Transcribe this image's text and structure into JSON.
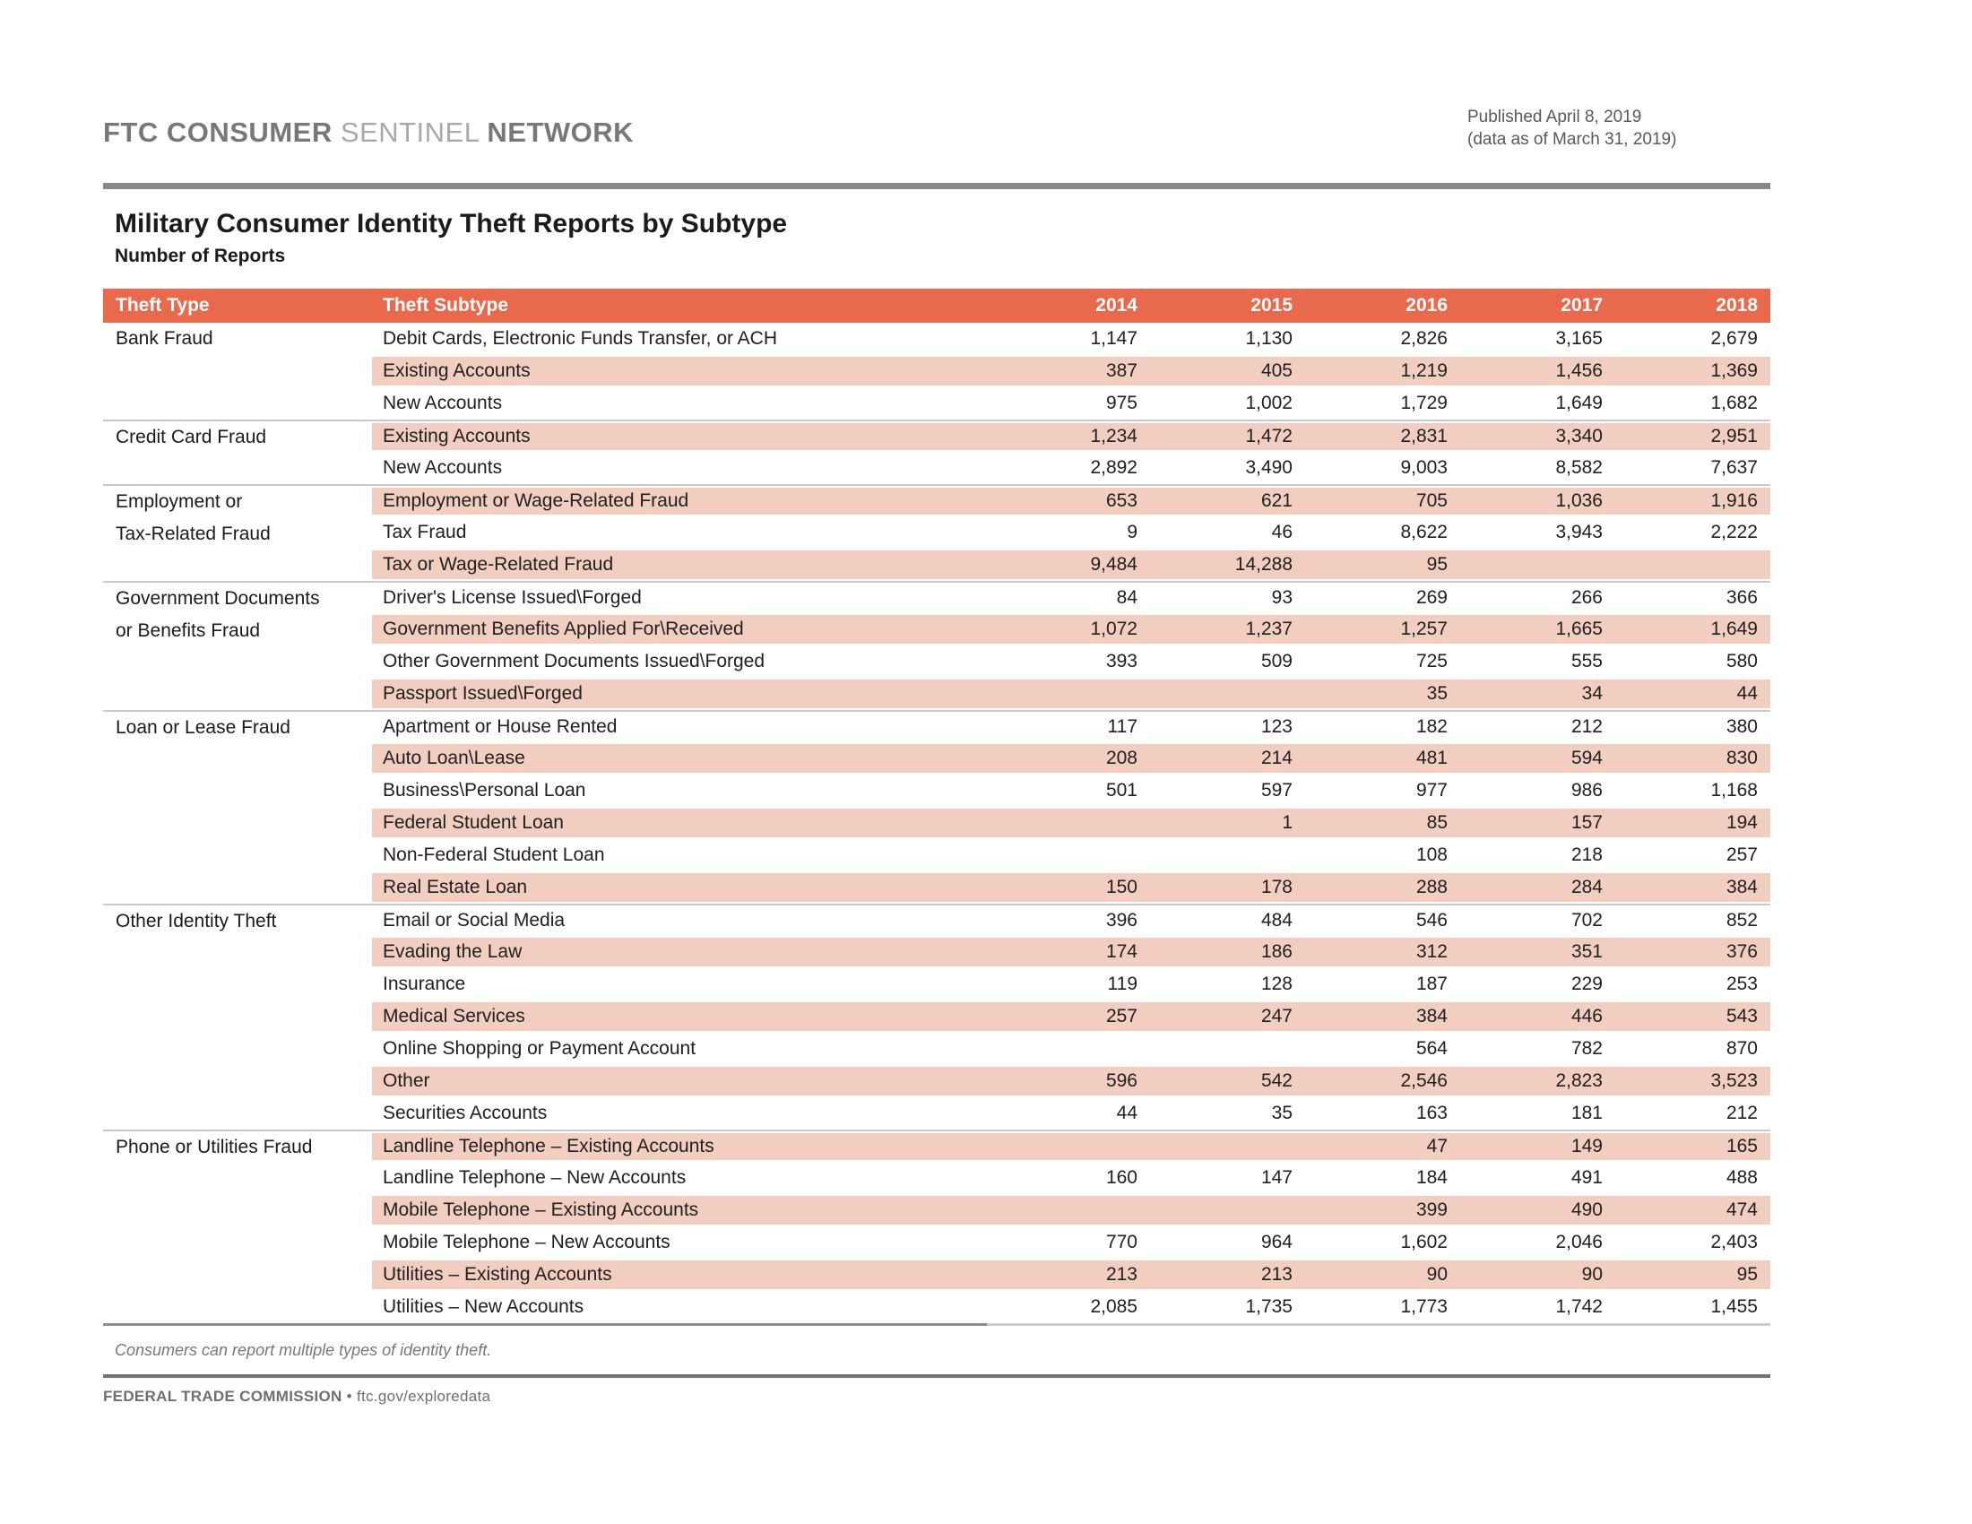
{
  "colors": {
    "accent": "#E8694C",
    "stripe": "#F2CEC0",
    "header_text": "#FFFFFF",
    "brand_dark_gray": "#77787B",
    "brand_light_gray": "#A7A9AC"
  },
  "header": {
    "brand_part1": "FTC CONSUMER",
    "brand_part2": "SENTINEL",
    "brand_part3": "NETWORK",
    "published_line1": "Published April 8, 2019",
    "published_line2": "(data as of March 31, 2019)"
  },
  "title": "Military Consumer Identity Theft Reports by Subtype",
  "subtitle": "Number of Reports",
  "table": {
    "columns": [
      "Theft Type",
      "Theft Subtype",
      "2014",
      "2015",
      "2016",
      "2017",
      "2018"
    ],
    "groups": [
      {
        "type": "Bank Fraud",
        "rows": [
          {
            "subtype": "Debit Cards, Electronic Funds Transfer, or ACH",
            "values": [
              "1,147",
              "1,130",
              "2,826",
              "3,165",
              "2,679"
            ]
          },
          {
            "subtype": "Existing Accounts",
            "values": [
              "387",
              "405",
              "1,219",
              "1,456",
              "1,369"
            ]
          },
          {
            "subtype": "New Accounts",
            "values": [
              "975",
              "1,002",
              "1,729",
              "1,649",
              "1,682"
            ]
          }
        ]
      },
      {
        "type": "Credit Card Fraud",
        "rows": [
          {
            "subtype": "Existing Accounts",
            "values": [
              "1,234",
              "1,472",
              "2,831",
              "3,340",
              "2,951"
            ]
          },
          {
            "subtype": "New Accounts",
            "values": [
              "2,892",
              "3,490",
              "9,003",
              "8,582",
              "7,637"
            ]
          }
        ]
      },
      {
        "type": "Employment or\nTax-Related Fraud",
        "rows": [
          {
            "subtype": "Employment or Wage-Related Fraud",
            "values": [
              "653",
              "621",
              "705",
              "1,036",
              "1,916"
            ]
          },
          {
            "subtype": "Tax Fraud",
            "values": [
              "9",
              "46",
              "8,622",
              "3,943",
              "2,222"
            ]
          },
          {
            "subtype": "Tax or Wage-Related Fraud",
            "values": [
              "9,484",
              "14,288",
              "95",
              "",
              ""
            ]
          }
        ]
      },
      {
        "type": "Government Documents\nor Benefits Fraud",
        "rows": [
          {
            "subtype": "Driver's License Issued\\Forged",
            "values": [
              "84",
              "93",
              "269",
              "266",
              "366"
            ]
          },
          {
            "subtype": "Government Benefits Applied For\\Received",
            "values": [
              "1,072",
              "1,237",
              "1,257",
              "1,665",
              "1,649"
            ]
          },
          {
            "subtype": "Other Government Documents Issued\\Forged",
            "values": [
              "393",
              "509",
              "725",
              "555",
              "580"
            ]
          },
          {
            "subtype": "Passport Issued\\Forged",
            "values": [
              "",
              "",
              "35",
              "34",
              "44"
            ]
          }
        ]
      },
      {
        "type": "Loan or Lease Fraud",
        "rows": [
          {
            "subtype": "Apartment or House Rented",
            "values": [
              "117",
              "123",
              "182",
              "212",
              "380"
            ]
          },
          {
            "subtype": "Auto Loan\\Lease",
            "values": [
              "208",
              "214",
              "481",
              "594",
              "830"
            ]
          },
          {
            "subtype": "Business\\Personal Loan",
            "values": [
              "501",
              "597",
              "977",
              "986",
              "1,168"
            ]
          },
          {
            "subtype": "Federal Student Loan",
            "values": [
              "",
              "1",
              "85",
              "157",
              "194"
            ]
          },
          {
            "subtype": "Non-Federal Student Loan",
            "values": [
              "",
              "",
              "108",
              "218",
              "257"
            ]
          },
          {
            "subtype": "Real Estate Loan",
            "values": [
              "150",
              "178",
              "288",
              "284",
              "384"
            ]
          }
        ]
      },
      {
        "type": "Other Identity Theft",
        "rows": [
          {
            "subtype": "Email or Social Media",
            "values": [
              "396",
              "484",
              "546",
              "702",
              "852"
            ]
          },
          {
            "subtype": "Evading the Law",
            "values": [
              "174",
              "186",
              "312",
              "351",
              "376"
            ]
          },
          {
            "subtype": "Insurance",
            "values": [
              "119",
              "128",
              "187",
              "229",
              "253"
            ]
          },
          {
            "subtype": "Medical Services",
            "values": [
              "257",
              "247",
              "384",
              "446",
              "543"
            ]
          },
          {
            "subtype": "Online Shopping or Payment Account",
            "values": [
              "",
              "",
              "564",
              "782",
              "870"
            ]
          },
          {
            "subtype": "Other",
            "values": [
              "596",
              "542",
              "2,546",
              "2,823",
              "3,523"
            ]
          },
          {
            "subtype": "Securities Accounts",
            "values": [
              "44",
              "35",
              "163",
              "181",
              "212"
            ]
          }
        ]
      },
      {
        "type": "Phone or Utilities Fraud",
        "rows": [
          {
            "subtype": "Landline Telephone – Existing Accounts",
            "values": [
              "",
              "",
              "47",
              "149",
              "165"
            ]
          },
          {
            "subtype": "Landline Telephone – New Accounts",
            "values": [
              "160",
              "147",
              "184",
              "491",
              "488"
            ]
          },
          {
            "subtype": "Mobile Telephone – Existing Accounts",
            "values": [
              "",
              "",
              "399",
              "490",
              "474"
            ]
          },
          {
            "subtype": "Mobile Telephone – New Accounts",
            "values": [
              "770",
              "964",
              "1,602",
              "2,046",
              "2,403"
            ]
          },
          {
            "subtype": "Utilities – Existing Accounts",
            "values": [
              "213",
              "213",
              "90",
              "90",
              "95"
            ]
          },
          {
            "subtype": "Utilities – New Accounts",
            "values": [
              "2,085",
              "1,735",
              "1,773",
              "1,742",
              "1,455"
            ]
          }
        ]
      }
    ]
  },
  "footnote": "Consumers can report multiple types of identity theft.",
  "footer": {
    "org": "FEDERAL TRADE COMMISSION",
    "separator": "•",
    "url": "ftc.gov/exploredata"
  }
}
